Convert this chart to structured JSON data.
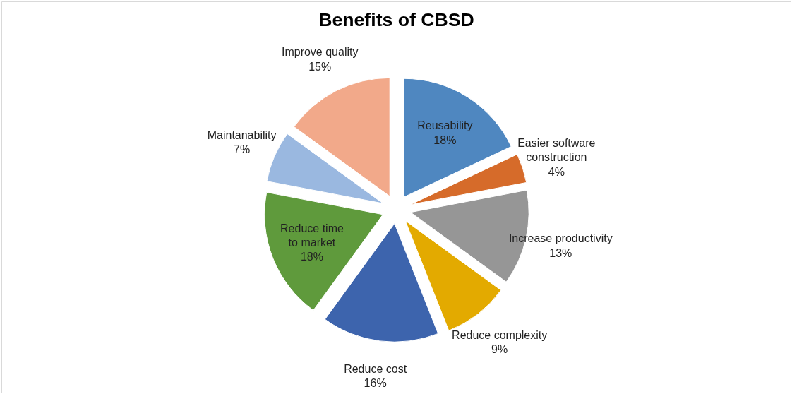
{
  "chart_data": {
    "type": "pie",
    "title": "Benefits of CBSD",
    "categories": [
      "Reusability",
      "Easier software construction",
      "Increase productivity",
      "Reduce complexity",
      "Reduce cost",
      "Reduce time to market",
      "Maintanability",
      "Improve quality"
    ],
    "values": [
      18,
      4,
      13,
      9,
      16,
      18,
      7,
      15
    ],
    "value_labels": [
      "18%",
      "4%",
      "13%",
      "9%",
      "16%",
      "18%",
      "7%",
      "15%"
    ],
    "colors": [
      "#4f87c0",
      "#d66b2a",
      "#969696",
      "#e3aa00",
      "#3d64ad",
      "#5f9a3c",
      "#9ab8e0",
      "#f2a98a"
    ]
  }
}
